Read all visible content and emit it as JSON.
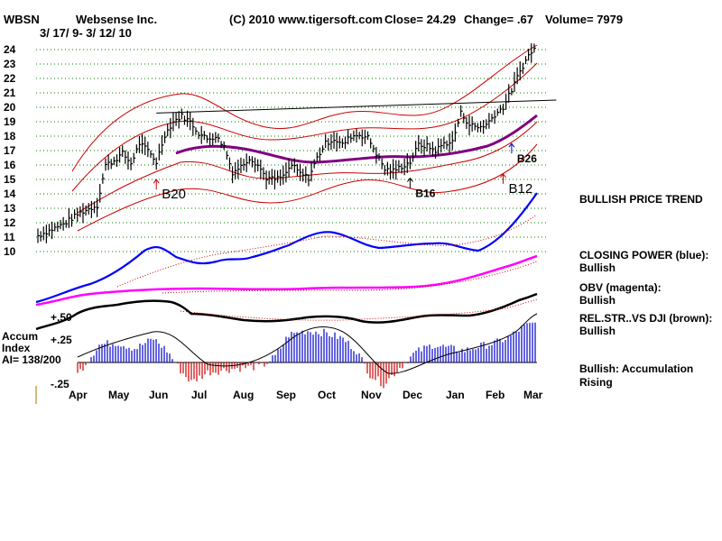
{
  "header": {
    "ticker": "WBSN",
    "company": "Websense Inc.",
    "copyright": "(C) 2010 www.tigersoft.com",
    "close": "Close=  24.29",
    "change": "Change= .67",
    "volume": "Volume= 7979",
    "date_range": "3/ 17/ 9- 3/ 12/ 10"
  },
  "side_labels": {
    "trend": "BULLISH PRICE TREND",
    "cp_label": "CLOSING POWER (blue):",
    "cp_value": "Bullish",
    "obv_label": "OBV (magenta):",
    "obv_value": "Bullish",
    "rel_label": "REL.STR..VS DJI (brown):",
    "rel_value": "Bullish",
    "accum_status": "Bullish: Accumulation Rising"
  },
  "accum_box": {
    "line1": "Accum",
    "line2": "Index",
    "line3": "AI= 138/200",
    "tick_p50": "+.50",
    "tick_p25": "+.25",
    "tick_m25": "-.25"
  },
  "colors": {
    "price": "#000000",
    "bands": "#cc0000",
    "ma": "#800080",
    "closing_power": "#0000ff",
    "obv": "#ff00ff",
    "rel_strength": "#000000",
    "accum_pos": "#0000cc",
    "accum_neg": "#cc0000",
    "grid": "#008000"
  },
  "chart_data": {
    "type": "line",
    "y_ticks": [
      10,
      11,
      12,
      13,
      14,
      15,
      16,
      17,
      18,
      19,
      20,
      21,
      22,
      23,
      24
    ],
    "ylim": [
      9.5,
      24.6
    ],
    "x_ticks": [
      "Apr",
      "May",
      "Jun",
      "Jul",
      "Aug",
      "Sep",
      "Oct",
      "Nov",
      "Dec",
      "Jan",
      "Feb",
      "Mar"
    ],
    "price_series": [
      [
        0,
        11.1
      ],
      [
        3,
        11.9
      ],
      [
        5,
        12.7
      ],
      [
        7,
        13.2
      ],
      [
        8,
        16.0
      ],
      [
        9,
        16.3
      ],
      [
        10,
        16.8
      ],
      [
        11,
        16.1
      ],
      [
        12,
        17.5
      ],
      [
        13,
        17.0
      ],
      [
        14,
        16.2
      ],
      [
        15,
        18.1
      ],
      [
        16,
        19.0
      ],
      [
        17,
        19.4
      ],
      [
        18,
        19.0
      ],
      [
        19,
        18.2
      ],
      [
        20,
        17.8
      ],
      [
        21,
        18.0
      ],
      [
        22,
        17.3
      ],
      [
        23,
        15.5
      ],
      [
        24,
        15.9
      ],
      [
        25,
        16.5
      ],
      [
        26,
        16.0
      ],
      [
        27,
        15.1
      ],
      [
        28,
        15.0
      ],
      [
        29,
        15.2
      ],
      [
        30,
        16.0
      ],
      [
        31,
        15.4
      ],
      [
        32,
        15.1
      ],
      [
        33,
        16.5
      ],
      [
        34,
        17.5
      ],
      [
        35,
        17.8
      ],
      [
        36,
        17.4
      ],
      [
        37,
        18.0
      ],
      [
        38,
        18.1
      ],
      [
        39,
        17.9
      ],
      [
        40,
        16.8
      ],
      [
        41,
        15.7
      ],
      [
        42,
        15.6
      ],
      [
        43,
        15.9
      ],
      [
        44,
        16.2
      ],
      [
        45,
        17.4
      ],
      [
        46,
        17.3
      ],
      [
        47,
        17.0
      ],
      [
        48,
        17.5
      ],
      [
        49,
        17.6
      ],
      [
        50,
        19.6
      ],
      [
        51,
        18.8
      ],
      [
        52,
        18.6
      ],
      [
        53,
        18.8
      ],
      [
        54,
        19.5
      ],
      [
        55,
        20.0
      ],
      [
        56,
        21.2
      ],
      [
        57,
        22.5
      ],
      [
        58,
        23.6
      ],
      [
        59,
        24.3
      ]
    ],
    "resistance_line": [
      [
        14,
        19.6
      ],
      [
        60,
        20.5
      ]
    ],
    "annotations": [
      {
        "label": "B20",
        "x": 14,
        "y": 14.3
      },
      {
        "label": "B16",
        "x": 44,
        "y": 14.4
      },
      {
        "label": "B12",
        "x": 55,
        "y": 14.7
      },
      {
        "label": "B26",
        "x": 56,
        "y": 16.8
      }
    ]
  }
}
